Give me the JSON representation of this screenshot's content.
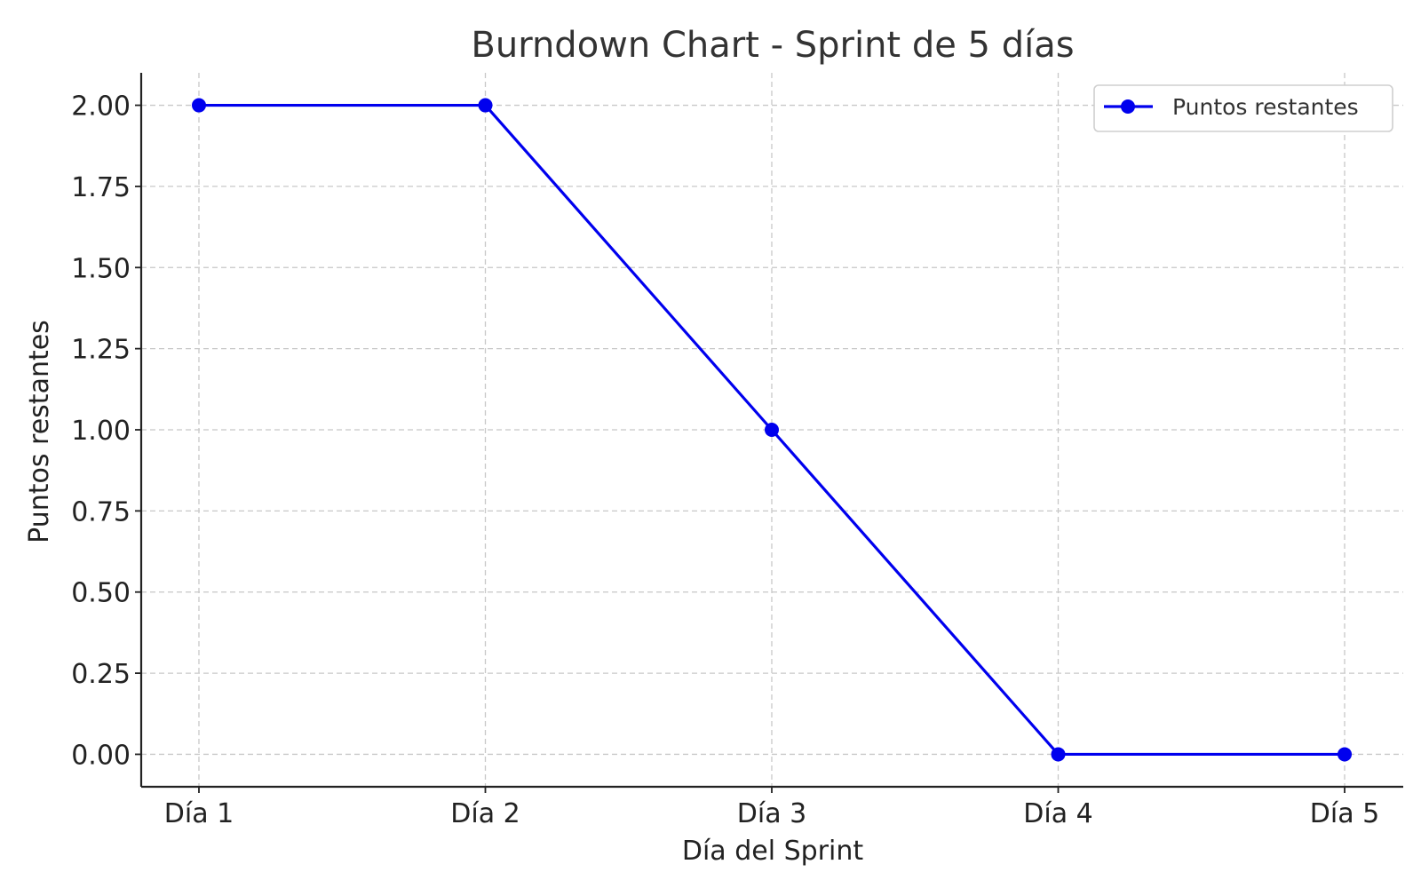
{
  "chart_data": {
    "type": "line",
    "title": "Burndown Chart - Sprint de 5 días",
    "xlabel": "Día del Sprint",
    "ylabel": "Puntos restantes",
    "categories": [
      "Día 1",
      "Día 2",
      "Día 3",
      "Día 4",
      "Día 5"
    ],
    "series": [
      {
        "name": "Puntos restantes",
        "values": [
          2,
          2,
          1,
          0,
          0
        ],
        "color": "#0000ee",
        "marker": "circle"
      }
    ],
    "ylim": [
      -0.1,
      2.1
    ],
    "yticks": [
      0.0,
      0.25,
      0.5,
      0.75,
      1.0,
      1.25,
      1.5,
      1.75,
      2.0
    ],
    "ytick_labels": [
      "0.00",
      "0.25",
      "0.50",
      "0.75",
      "1.00",
      "1.25",
      "1.50",
      "1.75",
      "2.00"
    ],
    "grid": true,
    "legend": "top-right"
  }
}
